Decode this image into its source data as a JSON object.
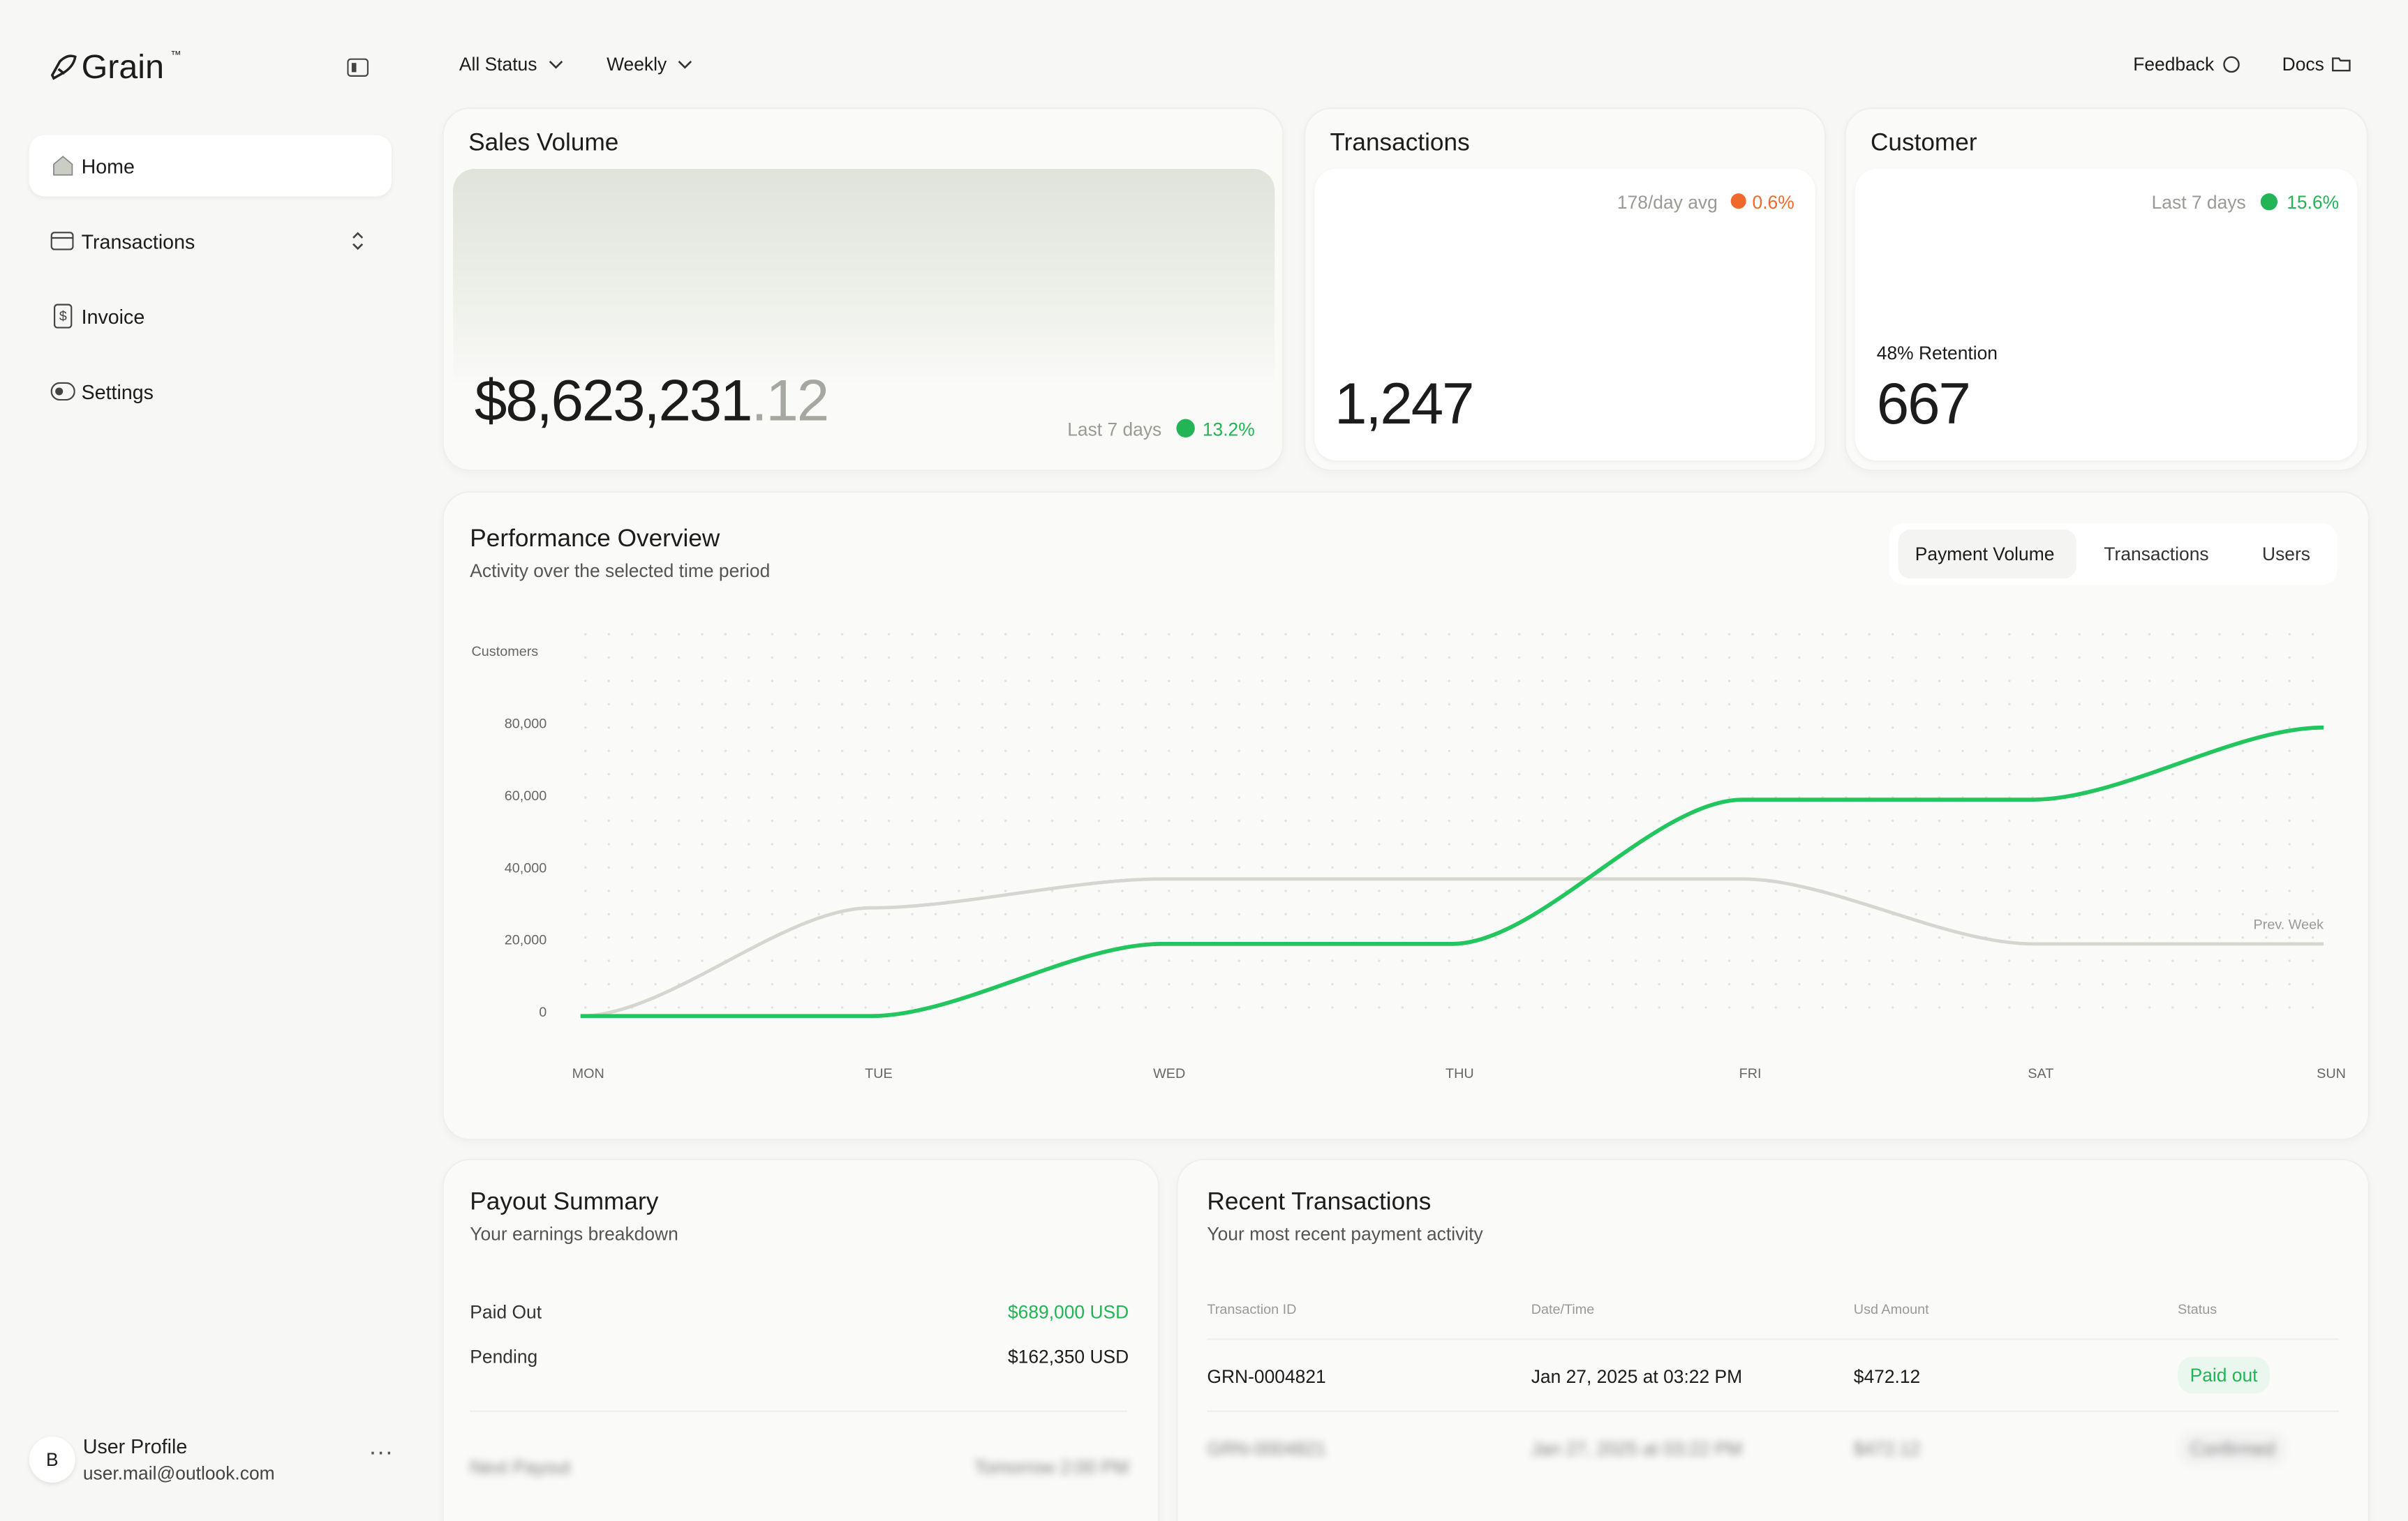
{
  "sidebar": {
    "brand": "Grain",
    "trademark": "™",
    "nav": [
      "Home",
      "Transactions",
      "Invoice",
      "Settings"
    ],
    "user": {
      "initial": "B",
      "name": "User Profile",
      "email": "user.mail@outlook.com"
    }
  },
  "topbar": {
    "filters": [
      "All Status",
      "Weekly"
    ],
    "links": [
      "Feedback",
      "Docs"
    ]
  },
  "cards": [
    {
      "title": "Sales Volume",
      "value": "$8,623,231",
      "decimals": ".12",
      "period": "Last 7 days",
      "change": "13.2%"
    },
    {
      "title": "Transactions",
      "period": "178/day avg",
      "change": "0.6%",
      "value": "1,247"
    },
    {
      "title": "Customer",
      "period": "Last 7 days",
      "change": "15.6%",
      "note": "48% Retention",
      "value": "667"
    }
  ],
  "performance": {
    "title": "Performance Overview",
    "subtitle": "Activity over the selected time period",
    "tabs": [
      "Payment Volume",
      "Transactions",
      "Users"
    ]
  },
  "chart_data": {
    "type": "line",
    "y_label": "Customers",
    "categories": [
      "MON",
      "TUE",
      "WED",
      "THU",
      "FRI",
      "SAT",
      "SUN"
    ],
    "series": [
      {
        "color": "#22c55e",
        "values": [
          0,
          0,
          20000,
          20000,
          60000,
          60000,
          80000
        ]
      },
      {
        "name": "Prev. Week",
        "color": "#d6d6d0",
        "values": [
          0,
          30000,
          38000,
          38000,
          38000,
          20000,
          20000
        ]
      }
    ],
    "ylim": [
      0,
      80000
    ],
    "yticks": [
      0,
      {
        "value": 20000,
        "label": "20,000"
      },
      {
        "value": 40000,
        "label": "40,000"
      },
      {
        "value": 60000,
        "label": "60,000"
      },
      {
        "value": 80000,
        "label": "80,000"
      }
    ]
  },
  "payout": {
    "title": "Payout Summary",
    "subtitle": "Your earnings breakdown",
    "rows": [
      [
        "Paid Out",
        "$689,000 USD"
      ],
      [
        "Pending",
        "$162,350 USD"
      ]
    ],
    "next": [
      "Next Payout",
      "Tomorrow 2:00 PM"
    ]
  },
  "transactions": {
    "title": "Recent Transactions",
    "subtitle": "Your most recent payment activity",
    "columns": [
      "Transaction ID",
      "Date/Time",
      "Usd Amount",
      "Status"
    ],
    "rows": [
      [
        "GRN-0004821",
        "Jan 27, 2025 at 03:22 PM",
        "$472.12",
        "Paid out"
      ],
      [
        "GRN-0004821",
        "Jan 27, 2025 at 03:22 PM",
        "$472.12",
        "Confirmed"
      ]
    ]
  }
}
